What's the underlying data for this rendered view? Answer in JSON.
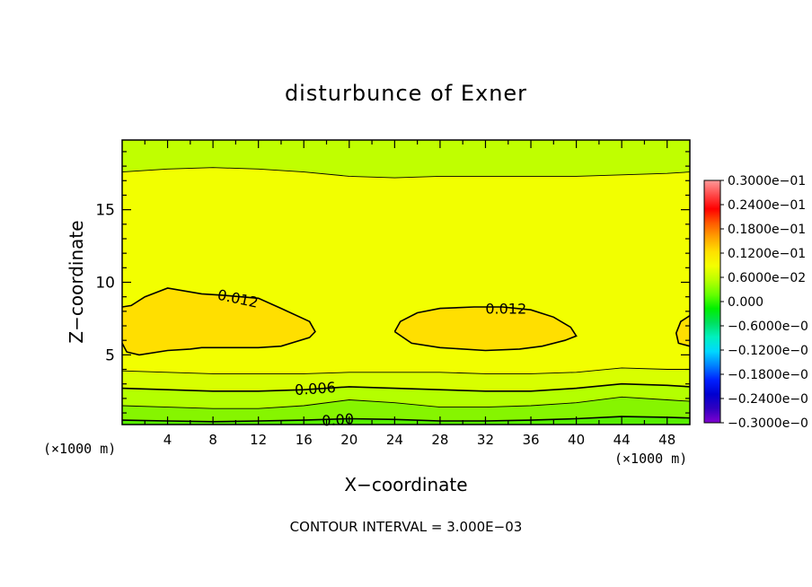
{
  "chart_data": {
    "type": "heatmap",
    "title": "disturbunce of Exner",
    "xlabel": "X−coordinate",
    "ylabel": "Z−coordinate",
    "x_unit_left": "(×1000 m)",
    "x_unit_right": "(×1000 m)",
    "xlim": [
      0,
      50
    ],
    "ylim": [
      0.2,
      19.8
    ],
    "x_ticks": [
      4,
      8,
      12,
      16,
      20,
      24,
      28,
      32,
      36,
      40,
      44,
      48
    ],
    "x_tick_labels": [
      "4",
      "8",
      "12",
      "16",
      "20",
      "24",
      "28",
      "32",
      "36",
      "40",
      "44",
      "48"
    ],
    "y_ticks": [
      5,
      10,
      15
    ],
    "y_tick_labels": [
      "5",
      "10",
      "15"
    ],
    "contour_interval_text": "CONTOUR INTERVAL = 3.000E−03",
    "contours": [
      {
        "level": 0.0,
        "label": "0.00",
        "x": [
          0,
          4,
          8,
          12,
          16,
          20,
          24,
          28,
          32,
          36,
          40,
          44,
          48,
          50
        ],
        "y": [
          0.5,
          0.45,
          0.4,
          0.45,
          0.5,
          0.6,
          0.55,
          0.45,
          0.45,
          0.5,
          0.6,
          0.75,
          0.7,
          0.65
        ]
      },
      {
        "level": 0.003,
        "label": "",
        "x": [
          0,
          4,
          8,
          12,
          16,
          20,
          24,
          28,
          32,
          36,
          40,
          44,
          48,
          50
        ],
        "y": [
          1.5,
          1.4,
          1.3,
          1.3,
          1.5,
          1.9,
          1.7,
          1.4,
          1.4,
          1.5,
          1.7,
          2.1,
          1.9,
          1.8
        ]
      },
      {
        "level": 0.006,
        "label": "0.006",
        "x": [
          0,
          4,
          8,
          12,
          16,
          20,
          24,
          28,
          32,
          36,
          40,
          44,
          48,
          50
        ],
        "y": [
          2.7,
          2.6,
          2.5,
          2.5,
          2.6,
          2.8,
          2.7,
          2.6,
          2.5,
          2.5,
          2.7,
          3.0,
          2.9,
          2.8
        ]
      },
      {
        "level": 0.009,
        "label": "",
        "x": [
          0,
          4,
          8,
          12,
          16,
          20,
          24,
          28,
          32,
          36,
          40,
          44,
          48,
          50
        ],
        "y": [
          3.9,
          3.8,
          3.7,
          3.7,
          3.7,
          3.8,
          3.8,
          3.8,
          3.7,
          3.7,
          3.8,
          4.1,
          4.0,
          4.0
        ]
      },
      {
        "level": 0.012,
        "label": "0.012",
        "x": [
          0,
          0.4,
          1.5,
          4,
          6,
          7,
          9,
          12,
          14,
          16.5,
          17,
          16.5,
          14,
          12,
          9,
          7,
          4,
          2,
          0.8,
          0
        ],
        "y": [
          5.8,
          5.2,
          5.0,
          5.3,
          5.4,
          5.5,
          5.5,
          5.5,
          5.6,
          6.2,
          6.6,
          7.3,
          8.2,
          8.9,
          9.1,
          9.2,
          9.6,
          9.0,
          8.4,
          8.3
        ]
      },
      {
        "level": 0.012,
        "label": "0.012",
        "x": [
          24,
          25.5,
          28,
          32,
          35,
          37,
          39,
          40,
          39.5,
          38,
          36,
          33.5,
          31,
          28,
          26,
          24.5,
          24
        ],
        "y": [
          6.6,
          5.8,
          5.5,
          5.3,
          5.4,
          5.6,
          6.0,
          6.3,
          6.9,
          7.6,
          8.1,
          8.3,
          8.3,
          8.2,
          7.9,
          7.3,
          6.6
        ]
      },
      {
        "level": 0.012,
        "label": "",
        "x": [
          50,
          49,
          48.8,
          49.2,
          50
        ],
        "y": [
          5.6,
          5.8,
          6.5,
          7.3,
          7.7
        ]
      },
      {
        "level": 0.015,
        "label": "",
        "x": [
          0,
          4,
          8,
          12,
          16,
          20,
          24,
          28,
          32,
          36,
          40,
          44,
          48,
          50
        ],
        "y": [
          17.6,
          17.8,
          17.9,
          17.8,
          17.6,
          17.3,
          17.2,
          17.3,
          17.3,
          17.3,
          17.3,
          17.4,
          17.5,
          17.6
        ]
      }
    ],
    "colorbar": {
      "labels": [
        "0.3000e−01",
        "0.2400e−01",
        "0.1800e−01",
        "0.1200e−01",
        "0.6000e−02",
        "0.000",
        "−0.6000e−0",
        "−0.1200e−0",
        "−0.1800e−0",
        "−0.2400e−0",
        "−0.3000e−0"
      ],
      "colors_top_to_bottom": [
        "#ff9a9a",
        "#ff4a4a",
        "#ff0000",
        "#ff5a00",
        "#ffa200",
        "#ffe000",
        "#f4ff00",
        "#b8ff00",
        "#66ff00",
        "#00f000",
        "#00e060",
        "#00f0c0",
        "#00d8ff",
        "#0080ff",
        "#0020ff",
        "#0000d0",
        "#3000c0",
        "#8000d0"
      ]
    },
    "field_colors": {
      "background": "#f2ff00",
      "warm_core": "#ffdf00",
      "band_pale": "#d8ff00",
      "band_mid": "#b4ff00",
      "band_strong": "#86f500",
      "band_green": "#55ee00",
      "top_band": "#c0ff00"
    }
  }
}
